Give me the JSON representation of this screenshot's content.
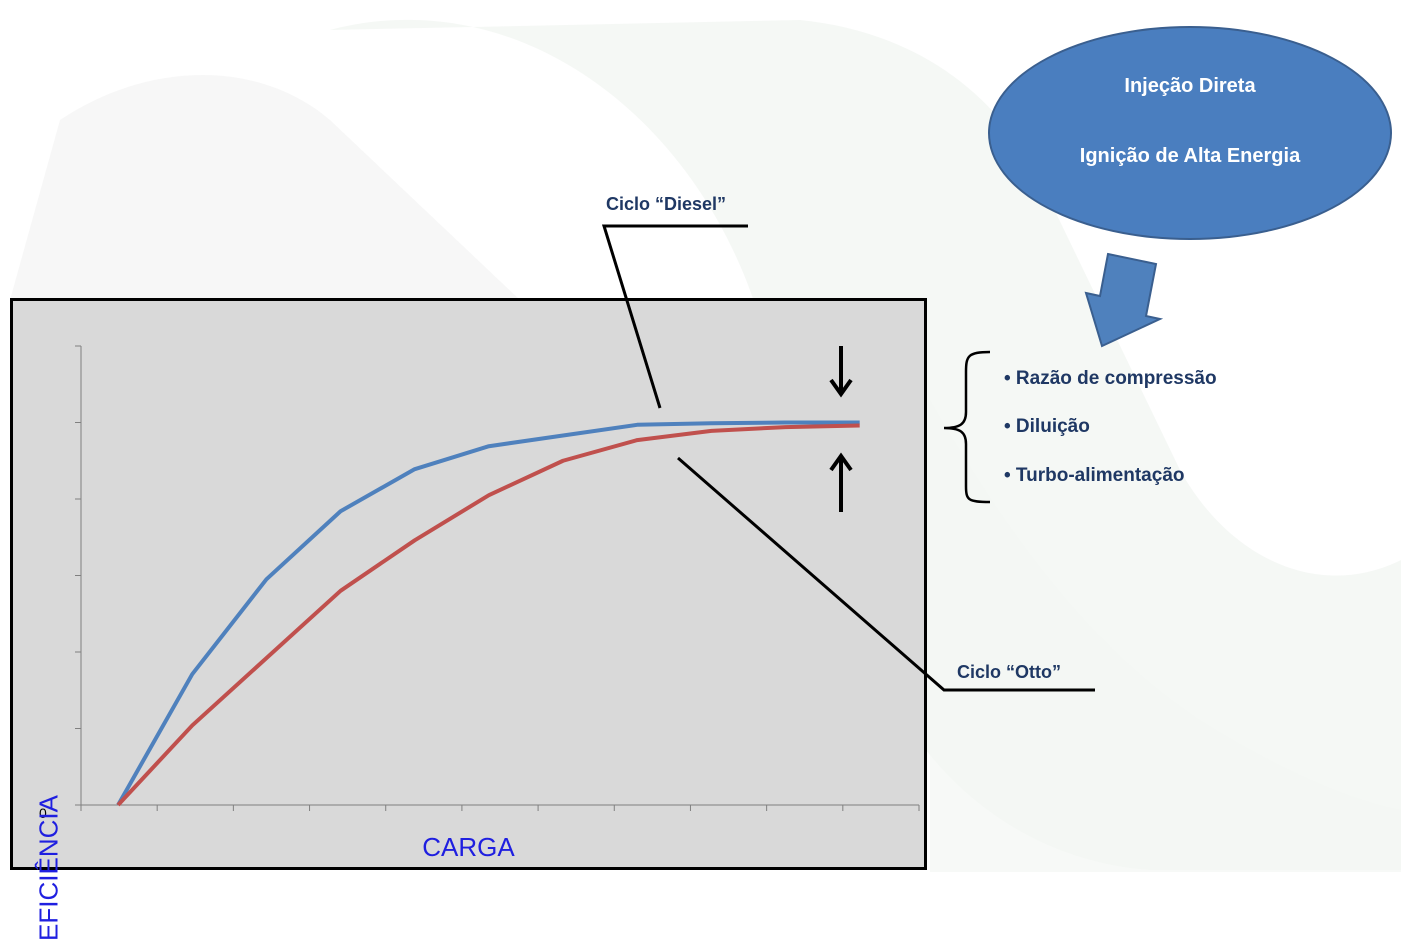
{
  "chart_data": {
    "type": "line",
    "title": "",
    "xlabel": "CARGA",
    "ylabel": "EFICIÊNCIA",
    "y_tick_label": "0",
    "x": [
      0,
      1,
      2,
      3,
      4,
      5,
      6,
      7,
      8,
      9,
      10
    ],
    "xlim": [
      -0.5,
      10.8
    ],
    "ylim": [
      0,
      6
    ],
    "series": [
      {
        "name": "Ciclo “Diesel”",
        "color": "#4f81bd",
        "values": [
          0,
          1.71,
          2.95,
          3.84,
          4.39,
          4.69,
          4.83,
          4.97,
          4.99,
          5.0,
          5.0
        ]
      },
      {
        "name": "Ciclo “Otto”",
        "color": "#c0504d",
        "values": [
          0,
          1.04,
          1.92,
          2.8,
          3.46,
          4.05,
          4.5,
          4.77,
          4.89,
          4.94,
          4.96
        ]
      }
    ],
    "grid": false
  },
  "annotations": {
    "diesel_label": "Ciclo “Diesel”",
    "otto_label": "Ciclo “Otto”"
  },
  "bubble": {
    "line1": "Injeção Direta",
    "line2": "Ignição de Alta Energia",
    "color": "#4a7ebf"
  },
  "factors": [
    "• Razão de compressão",
    "• Diluição",
    "• Turbo-alimentação"
  ]
}
